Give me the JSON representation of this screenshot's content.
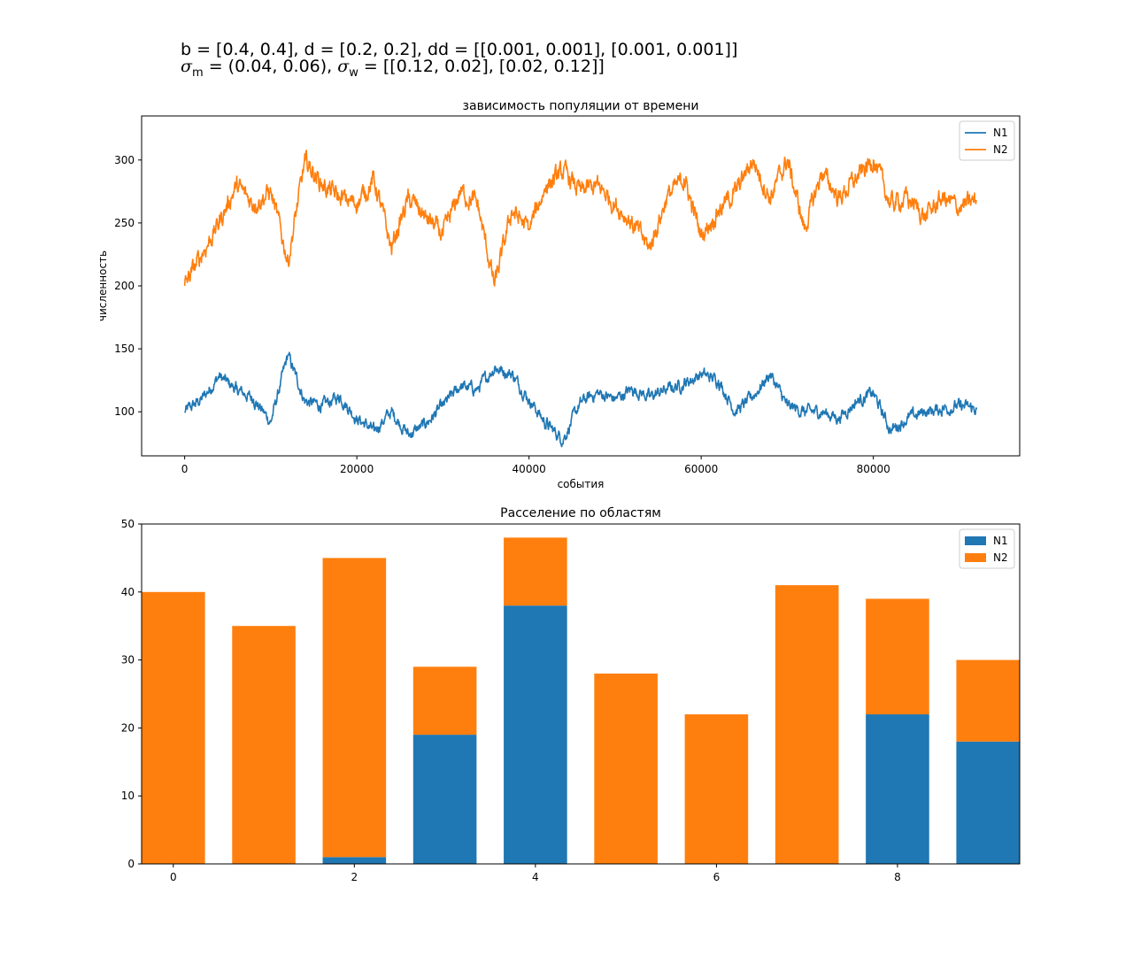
{
  "params": {
    "line1": "b = [0.4, 0.4], d = [0.2, 0.2], dd = [[0.001, 0.001], [0.001, 0.001]]",
    "sigma_m_symbol": "σ",
    "sigma_m_sub": "m",
    "sigma_m_value": " = (0.04, 0.06), ",
    "sigma_w_symbol": "σ",
    "sigma_w_sub": "w",
    "sigma_w_value": " = [[0.12, 0.02], [0.02, 0.12]]"
  },
  "colors": {
    "N1": "#1f77b4",
    "N2": "#ff7f0e"
  },
  "chart_data": [
    {
      "type": "line",
      "title": "зависимость популяции от времени",
      "xlabel": "события",
      "ylabel": "численность",
      "xlim": [
        -5000,
        97000
      ],
      "ylim": [
        65,
        335
      ],
      "xticks": [
        0,
        20000,
        40000,
        60000,
        80000
      ],
      "yticks": [
        100,
        150,
        200,
        250,
        300
      ],
      "legend": "top-right",
      "x": [
        0,
        2000,
        4000,
        6000,
        8000,
        10000,
        12000,
        14000,
        16000,
        18000,
        20000,
        22000,
        24000,
        26000,
        28000,
        30000,
        32000,
        34000,
        36000,
        38000,
        40000,
        42000,
        44000,
        46000,
        48000,
        50000,
        52000,
        54000,
        56000,
        58000,
        60000,
        62000,
        64000,
        66000,
        68000,
        70000,
        72000,
        74000,
        76000,
        78000,
        80000,
        82000,
        84000,
        86000,
        88000,
        90000,
        92000
      ],
      "series": [
        {
          "name": "N1",
          "values": [
            100,
            110,
            128,
            118,
            110,
            92,
            145,
            108,
            105,
            112,
            95,
            85,
            100,
            82,
            90,
            105,
            120,
            118,
            135,
            130,
            110,
            90,
            78,
            108,
            115,
            110,
            118,
            112,
            118,
            122,
            130,
            125,
            100,
            112,
            130,
            105,
            100,
            100,
            95,
            108,
            115,
            85,
            95,
            100,
            102,
            105,
            102
          ]
        },
        {
          "name": "N2",
          "values": [
            200,
            225,
            250,
            280,
            265,
            275,
            220,
            300,
            280,
            270,
            265,
            285,
            230,
            270,
            255,
            240,
            275,
            265,
            200,
            260,
            245,
            280,
            290,
            275,
            280,
            265,
            250,
            230,
            270,
            285,
            240,
            260,
            275,
            300,
            270,
            300,
            245,
            290,
            270,
            285,
            300,
            265,
            270,
            255,
            270,
            262,
            268
          ]
        }
      ]
    },
    {
      "type": "bar",
      "stacked": true,
      "title": "Расселение по областям",
      "xlabel": "",
      "ylabel": "",
      "xlim": [
        -0.35,
        9.35
      ],
      "ylim": [
        0,
        50
      ],
      "xticks": [
        0,
        2,
        4,
        6,
        8
      ],
      "yticks": [
        0,
        10,
        20,
        30,
        40,
        50
      ],
      "legend": "top-right",
      "categories": [
        0,
        1,
        2,
        3,
        4,
        5,
        6,
        7,
        8,
        9
      ],
      "series": [
        {
          "name": "N1",
          "values": [
            0,
            0,
            1,
            19,
            38,
            0,
            0,
            0,
            22,
            18
          ]
        },
        {
          "name": "N2",
          "values": [
            40,
            35,
            44,
            10,
            10,
            28,
            22,
            41,
            17,
            12
          ]
        }
      ]
    }
  ]
}
